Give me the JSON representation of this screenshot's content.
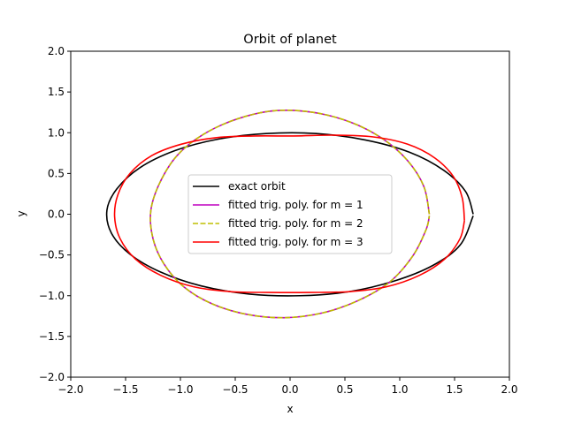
{
  "chart_data": {
    "type": "line",
    "title": "Orbit of planet",
    "xlabel": "x",
    "ylabel": "y",
    "xlim": [
      -2.0,
      2.0
    ],
    "ylim": [
      -2.0,
      2.0
    ],
    "xticks": [
      "−2.0",
      "−1.5",
      "−1.0",
      "−0.5",
      "0.0",
      "0.5",
      "1.0",
      "1.5",
      "2.0"
    ],
    "yticks": [
      "−2.0",
      "−1.5",
      "−1.0",
      "−0.5",
      "0.0",
      "0.5",
      "1.0",
      "1.5",
      "2.0"
    ],
    "xtick_values": [
      -2.0,
      -1.5,
      -1.0,
      -0.5,
      0.0,
      0.5,
      1.0,
      1.5,
      2.0
    ],
    "ytick_values": [
      -2.0,
      -1.5,
      -1.0,
      -0.5,
      0.0,
      0.5,
      1.0,
      1.5,
      2.0
    ],
    "grid": false,
    "legend_position": "center",
    "series": [
      {
        "name": "exact orbit",
        "color": "#000000",
        "style": "solid",
        "x": [
          1.67,
          1.6,
          1.4,
          1.09,
          0.69,
          0.24,
          -0.22,
          -0.66,
          -1.05,
          -1.37,
          -1.58,
          -1.67,
          -1.63,
          -1.46,
          -1.18,
          -0.81,
          -0.37,
          0.09,
          0.54,
          0.95,
          1.3,
          1.55,
          1.67
        ],
        "y": [
          0.0,
          0.28,
          0.54,
          0.76,
          0.91,
          0.99,
          0.99,
          0.92,
          0.78,
          0.57,
          0.31,
          0.05,
          -0.23,
          -0.49,
          -0.71,
          -0.88,
          -0.98,
          -1.0,
          -0.95,
          -0.82,
          -0.63,
          -0.38,
          -0.02
        ]
      },
      {
        "name": "fitted trig. poly. for m = 1",
        "color": "#bf00bf",
        "style": "solid",
        "x": [
          1.27,
          1.22,
          1.07,
          0.84,
          0.55,
          0.21,
          -0.14,
          -0.48,
          -0.79,
          -1.03,
          -1.19,
          -1.27,
          -1.25,
          -1.15,
          -0.97,
          -0.71,
          -0.39,
          -0.05,
          0.3,
          0.62,
          0.91,
          1.12,
          1.24,
          1.27
        ],
        "y": [
          0.0,
          0.34,
          0.66,
          0.93,
          1.13,
          1.25,
          1.27,
          1.17,
          0.98,
          0.72,
          0.38,
          0.04,
          -0.3,
          -0.61,
          -0.89,
          -1.1,
          -1.23,
          -1.27,
          -1.21,
          -1.06,
          -0.83,
          -0.51,
          -0.19,
          -0.02
        ]
      },
      {
        "name": "fitted trig. poly. for m = 2",
        "color": "#bfbf00",
        "style": "dashed",
        "x": [
          1.27,
          1.22,
          1.07,
          0.84,
          0.55,
          0.21,
          -0.14,
          -0.48,
          -0.79,
          -1.03,
          -1.19,
          -1.27,
          -1.25,
          -1.15,
          -0.97,
          -0.71,
          -0.39,
          -0.05,
          0.3,
          0.62,
          0.91,
          1.12,
          1.24,
          1.27
        ],
        "y": [
          0.0,
          0.34,
          0.66,
          0.93,
          1.13,
          1.25,
          1.27,
          1.17,
          0.98,
          0.72,
          0.38,
          0.04,
          -0.3,
          -0.61,
          -0.89,
          -1.1,
          -1.23,
          -1.27,
          -1.21,
          -1.06,
          -0.83,
          -0.51,
          -0.19,
          -0.02
        ]
      },
      {
        "name": "fitted trig. poly. for m = 3",
        "color": "#ff0000",
        "style": "solid",
        "x": [
          1.59,
          1.57,
          1.49,
          1.32,
          1.07,
          0.75,
          0.4,
          0.04,
          -0.32,
          -0.67,
          -0.99,
          -1.26,
          -1.46,
          -1.57,
          -1.6,
          -1.55,
          -1.41,
          -1.18,
          -0.88,
          -0.54,
          -0.18,
          0.18,
          0.54,
          0.88,
          1.18,
          1.41,
          1.55,
          1.59
        ],
        "y": [
          -0.08,
          0.2,
          0.46,
          0.69,
          0.86,
          0.95,
          0.97,
          0.96,
          0.96,
          0.94,
          0.86,
          0.72,
          0.5,
          0.24,
          -0.03,
          -0.3,
          -0.55,
          -0.75,
          -0.89,
          -0.95,
          -0.96,
          -0.96,
          -0.95,
          -0.89,
          -0.75,
          -0.55,
          -0.3,
          -0.08
        ]
      }
    ]
  }
}
